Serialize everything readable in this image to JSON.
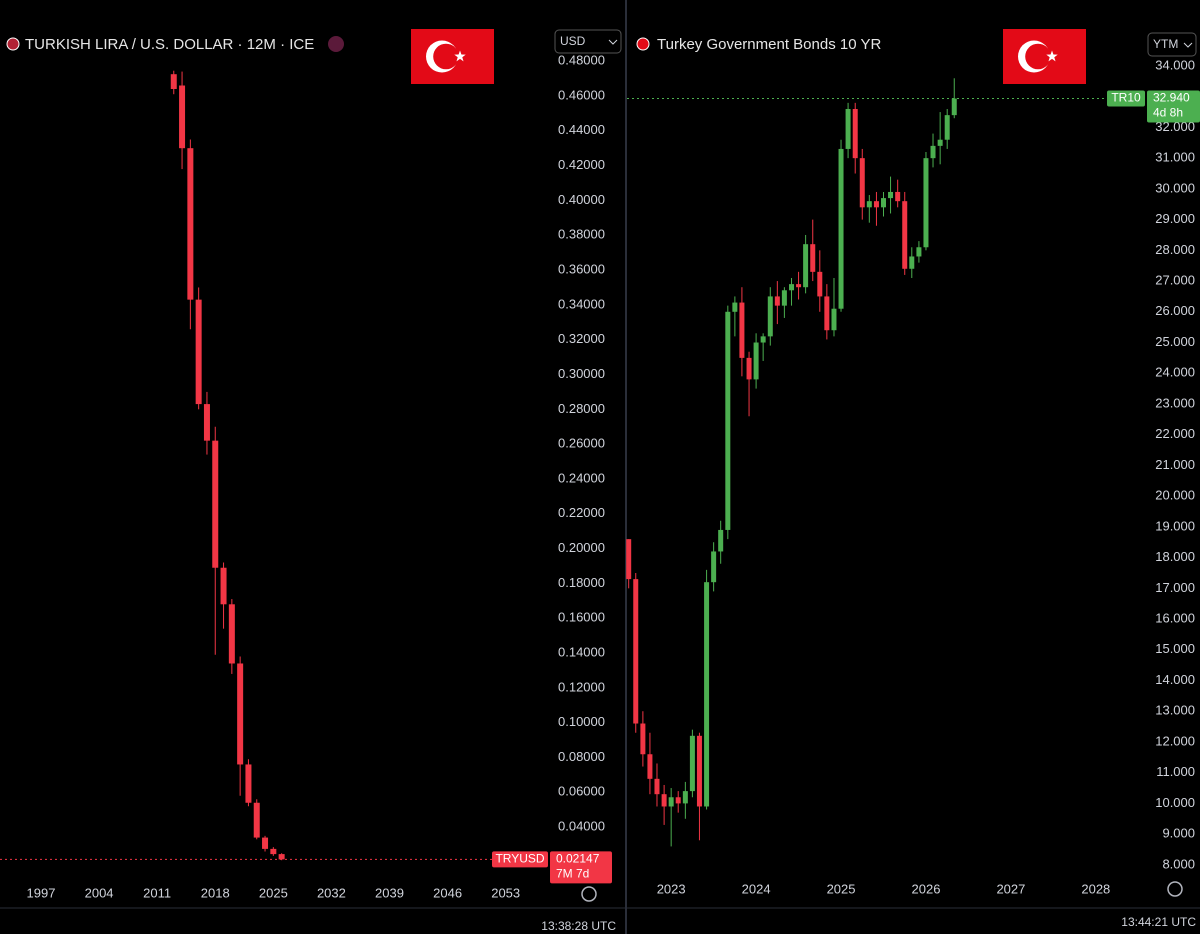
{
  "chart_data": [
    {
      "type": "candlestick",
      "title": "TURKISH LIRA / U.S. DOLLAR · 12M · ICE",
      "currency": "USD",
      "symbol": "TRYUSD",
      "last_price": 0.02147,
      "countdown": "7M 7d",
      "time": "13:38:28 UTC",
      "up_color": "#4caf50",
      "down_color": "#f23645",
      "x": [
        2013,
        2014,
        2015,
        2016,
        2017,
        2018,
        2019,
        2020,
        2021,
        2022,
        2023,
        2024,
        2025,
        2026
      ],
      "open": [
        0.4725,
        0.466,
        0.43,
        0.343,
        0.283,
        0.262,
        0.189,
        0.168,
        0.134,
        0.076,
        0.054,
        0.034,
        0.0275,
        0.0245
      ],
      "high": [
        0.4745,
        0.474,
        0.435,
        0.35,
        0.29,
        0.27,
        0.192,
        0.171,
        0.138,
        0.079,
        0.056,
        0.035,
        0.0285,
        0.025
      ],
      "low": [
        0.461,
        0.418,
        0.326,
        0.28,
        0.254,
        0.139,
        0.154,
        0.128,
        0.058,
        0.052,
        0.033,
        0.026,
        0.0235,
        0.021
      ],
      "close": [
        0.464,
        0.43,
        0.343,
        0.283,
        0.262,
        0.189,
        0.168,
        0.134,
        0.076,
        0.054,
        0.034,
        0.0275,
        0.0245,
        0.02147
      ],
      "xlim": [
        1992.06,
        2058.1
      ],
      "xticks": [
        1997,
        2004,
        2011,
        2018,
        2025,
        2032,
        2039,
        2046,
        2053
      ],
      "ylim": [
        0.0125,
        0.4864
      ],
      "yticks": [
        {
          "value": 0.04,
          "label": "0.04000"
        },
        {
          "value": 0.06,
          "label": "0.06000"
        },
        {
          "value": 0.08,
          "label": "0.08000"
        },
        {
          "value": 0.1,
          "label": "0.10000"
        },
        {
          "value": 0.12,
          "label": "0.12000"
        },
        {
          "value": 0.14,
          "label": "0.14000"
        },
        {
          "value": 0.16,
          "label": "0.16000"
        },
        {
          "value": 0.18,
          "label": "0.18000"
        },
        {
          "value": 0.2,
          "label": "0.20000"
        },
        {
          "value": 0.22,
          "label": "0.22000"
        },
        {
          "value": 0.24,
          "label": "0.24000"
        },
        {
          "value": 0.26,
          "label": "0.26000"
        },
        {
          "value": 0.28,
          "label": "0.28000"
        },
        {
          "value": 0.3,
          "label": "0.30000"
        },
        {
          "value": 0.32,
          "label": "0.32000"
        },
        {
          "value": 0.34,
          "label": "0.34000"
        },
        {
          "value": 0.36,
          "label": "0.36000"
        },
        {
          "value": 0.38,
          "label": "0.38000"
        },
        {
          "value": 0.4,
          "label": "0.40000"
        },
        {
          "value": 0.42,
          "label": "0.42000"
        },
        {
          "value": 0.44,
          "label": "0.44000"
        },
        {
          "value": 0.46,
          "label": "0.46000"
        },
        {
          "value": 0.48,
          "label": "0.48000"
        }
      ]
    },
    {
      "type": "candlestick",
      "title": "Turkey Government Bonds 10 YR",
      "currency": "YTM",
      "symbol": "TR10",
      "last_price": {
        "value": 32.94,
        "label": "32.940"
      },
      "countdown": "4d 8h",
      "time": "13:44:21 UTC",
      "up_color": "#4caf50",
      "down_color": "#f23645",
      "x": [
        2022.5,
        2022.583,
        2022.667,
        2022.75,
        2022.833,
        2022.917,
        2023,
        2023.083,
        2023.167,
        2023.25,
        2023.333,
        2023.417,
        2023.5,
        2023.583,
        2023.667,
        2023.75,
        2023.833,
        2023.917,
        2024,
        2024.083,
        2024.167,
        2024.25,
        2024.333,
        2024.417,
        2024.5,
        2024.583,
        2024.667,
        2024.75,
        2024.833,
        2024.917,
        2025,
        2025.083,
        2025.167,
        2025.25,
        2025.333,
        2025.417,
        2025.5,
        2025.583,
        2025.667,
        2025.75,
        2025.833,
        2025.917,
        2026,
        2026.083,
        2026.167,
        2026.25,
        2026.333
      ],
      "open": [
        18.6,
        17.3,
        12.6,
        11.6,
        10.8,
        10.3,
        9.9,
        10.2,
        10.0,
        10.4,
        12.2,
        9.9,
        17.2,
        18.2,
        18.9,
        26.0,
        26.3,
        24.5,
        23.8,
        25.0,
        25.2,
        26.5,
        26.2,
        26.7,
        26.9,
        26.8,
        28.2,
        27.3,
        26.5,
        25.4,
        26.1,
        31.3,
        32.6,
        31.0,
        29.4,
        29.6,
        29.4,
        29.7,
        29.9,
        29.6,
        27.4,
        27.8,
        28.1,
        31.0,
        31.4,
        31.6,
        32.4
      ],
      "high": [
        18.6,
        17.5,
        13.0,
        12.3,
        11.3,
        10.6,
        10.5,
        10.4,
        10.7,
        12.4,
        12.3,
        17.6,
        18.5,
        19.2,
        26.2,
        26.5,
        26.8,
        24.7,
        25.3,
        25.3,
        26.8,
        27.0,
        26.8,
        27.1,
        27.3,
        28.5,
        29.0,
        28.0,
        26.9,
        27.1,
        31.6,
        32.8,
        32.8,
        31.3,
        29.8,
        29.9,
        29.9,
        30.4,
        30.3,
        29.9,
        28.1,
        28.3,
        31.2,
        31.8,
        32.5,
        32.6,
        33.6
      ],
      "low": [
        17.0,
        12.3,
        11.2,
        10.3,
        9.9,
        9.3,
        8.6,
        9.7,
        9.5,
        10.2,
        8.8,
        9.8,
        16.9,
        17.8,
        18.6,
        25.2,
        23.9,
        22.6,
        23.5,
        24.4,
        24.9,
        25.6,
        25.8,
        26.2,
        26.4,
        26.6,
        27.0,
        26.0,
        25.1,
        25.2,
        26.0,
        31.0,
        30.5,
        29.0,
        28.9,
        28.8,
        29.1,
        29.2,
        29.4,
        27.2,
        27.1,
        27.6,
        28.0,
        30.7,
        30.8,
        31.3,
        32.3
      ],
      "close": [
        17.3,
        12.6,
        11.6,
        10.8,
        10.3,
        9.9,
        10.2,
        10.0,
        10.4,
        12.2,
        9.9,
        17.2,
        18.2,
        18.9,
        26.0,
        26.3,
        24.5,
        23.8,
        25.0,
        25.2,
        26.5,
        26.2,
        26.7,
        26.9,
        26.8,
        28.2,
        27.3,
        26.5,
        25.4,
        26.1,
        31.3,
        32.6,
        31.0,
        29.4,
        29.6,
        29.4,
        29.7,
        29.9,
        29.6,
        27.4,
        27.8,
        28.1,
        31.0,
        31.4,
        31.6,
        32.4,
        32.94
      ],
      "xlim": [
        2022.48,
        2028.52
      ],
      "xticks": [
        2023,
        2024,
        2025,
        2026,
        2027,
        2028
      ],
      "ylim": [
        7.67,
        34.52
      ],
      "yticks": [
        {
          "value": 8,
          "label": "8.000"
        },
        {
          "value": 9,
          "label": "9.000"
        },
        {
          "value": 10,
          "label": "10.000"
        },
        {
          "value": 11,
          "label": "11.000"
        },
        {
          "value": 12,
          "label": "12.000"
        },
        {
          "value": 13,
          "label": "13.000"
        },
        {
          "value": 14,
          "label": "14.000"
        },
        {
          "value": 15,
          "label": "15.000"
        },
        {
          "value": 16,
          "label": "16.000"
        },
        {
          "value": 17,
          "label": "17.000"
        },
        {
          "value": 18,
          "label": "18.000"
        },
        {
          "value": 19,
          "label": "19.000"
        },
        {
          "value": 20,
          "label": "20.000"
        },
        {
          "value": 21,
          "label": "21.000"
        },
        {
          "value": 22,
          "label": "22.000"
        },
        {
          "value": 23,
          "label": "23.000"
        },
        {
          "value": 24,
          "label": "24.000"
        },
        {
          "value": 25,
          "label": "25.000"
        },
        {
          "value": 26,
          "label": "26.000"
        },
        {
          "value": 27,
          "label": "27.000"
        },
        {
          "value": 28,
          "label": "28.000"
        },
        {
          "value": 29,
          "label": "29.000"
        },
        {
          "value": 30,
          "label": "30.000"
        },
        {
          "value": 31,
          "label": "31.000"
        },
        {
          "value": 32,
          "label": "32.000"
        },
        {
          "value": 33,
          "label": "33.000"
        },
        {
          "value": 34,
          "label": "34.000"
        }
      ]
    }
  ]
}
